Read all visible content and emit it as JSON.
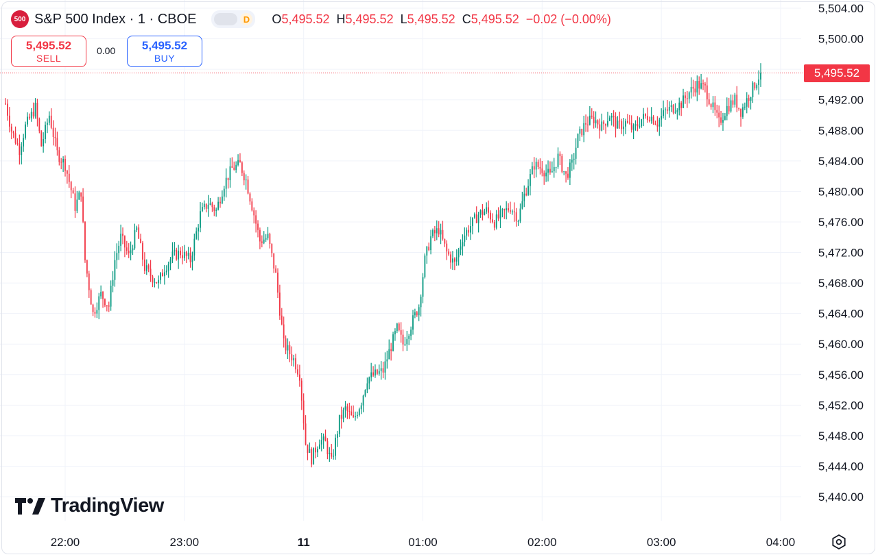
{
  "header": {
    "symbol_badge": "500",
    "title": "S&P 500 Index · 1 · CBOE",
    "market_status": "D",
    "ohlc": [
      {
        "key": "O",
        "value": "5,495.52"
      },
      {
        "key": "H",
        "value": "5,495.52"
      },
      {
        "key": "L",
        "value": "5,495.52"
      },
      {
        "key": "C",
        "value": "5,495.52"
      }
    ],
    "change": "−0.02 (−0.00%)"
  },
  "trade": {
    "sell_price": "5,495.52",
    "sell_label": "SELL",
    "spread": "0.00",
    "buy_price": "5,495.52",
    "buy_label": "BUY"
  },
  "last_price_label": "5,495.52",
  "logo_text": "TradingView",
  "colors": {
    "up": "#089981",
    "down": "#f23645",
    "grid": "#f0f3fa",
    "axis_text": "#131722"
  },
  "chart_data": {
    "type": "candlestick",
    "title": "S&P 500 Index · 1 · CBOE",
    "ylim": [
      5438,
      5504
    ],
    "y_ticks": [
      "5,440.00",
      "5,444.00",
      "5,448.00",
      "5,452.00",
      "5,456.00",
      "5,460.00",
      "5,464.00",
      "5,468.00",
      "5,472.00",
      "5,476.00",
      "5,480.00",
      "5,484.00",
      "5,488.00",
      "5,492.00",
      "5,496.00",
      "5,500.00",
      "5,504.00"
    ],
    "y_tick_values": [
      5440,
      5444,
      5448,
      5452,
      5456,
      5460,
      5464,
      5468,
      5472,
      5476,
      5480,
      5484,
      5488,
      5492,
      5496,
      5500,
      5504
    ],
    "x_ticks": [
      {
        "label": "22:00",
        "minute": 0
      },
      {
        "label": "23:00",
        "minute": 60
      },
      {
        "label": "11",
        "minute": 120,
        "bold": true
      },
      {
        "label": "01:00",
        "minute": 180
      },
      {
        "label": "02:00",
        "minute": 240
      },
      {
        "label": "03:00",
        "minute": 300
      },
      {
        "label": "04:00",
        "minute": 360
      }
    ],
    "interval_minutes": 1,
    "start_minute": -30,
    "last_price": 5495.52,
    "anchors": [
      [
        -30,
        5491.5
      ],
      [
        -27,
        5488.0
      ],
      [
        -23,
        5485.5
      ],
      [
        -20,
        5488.5
      ],
      [
        -15,
        5491.0
      ],
      [
        -12,
        5486.0
      ],
      [
        -8,
        5490.0
      ],
      [
        -4,
        5485.0
      ],
      [
        0,
        5483.5
      ],
      [
        5,
        5478.0
      ],
      [
        8,
        5480.0
      ],
      [
        10,
        5471.0
      ],
      [
        14,
        5464.0
      ],
      [
        18,
        5466.5
      ],
      [
        22,
        5465.0
      ],
      [
        25,
        5471.0
      ],
      [
        28,
        5474.0
      ],
      [
        32,
        5471.5
      ],
      [
        36,
        5475.0
      ],
      [
        40,
        5470.0
      ],
      [
        43,
        5469.0
      ],
      [
        47,
        5468.0
      ],
      [
        50,
        5470.0
      ],
      [
        54,
        5471.5
      ],
      [
        58,
        5472.0
      ],
      [
        63,
        5471.0
      ],
      [
        68,
        5477.0
      ],
      [
        72,
        5478.5
      ],
      [
        76,
        5477.5
      ],
      [
        80,
        5481.0
      ],
      [
        84,
        5483.0
      ],
      [
        88,
        5483.5
      ],
      [
        91,
        5481.5
      ],
      [
        95,
        5477.0
      ],
      [
        98,
        5473.5
      ],
      [
        102,
        5474.0
      ],
      [
        106,
        5469.0
      ],
      [
        110,
        5460.0
      ],
      [
        115,
        5458.0
      ],
      [
        118,
        5456.0
      ],
      [
        121,
        5447.0
      ],
      [
        124,
        5445.0
      ],
      [
        128,
        5447.5
      ],
      [
        131,
        5447.0
      ],
      [
        134,
        5444.5
      ],
      [
        138,
        5450.0
      ],
      [
        141,
        5451.5
      ],
      [
        145,
        5450.0
      ],
      [
        149,
        5452.5
      ],
      [
        152,
        5455.5
      ],
      [
        156,
        5456.0
      ],
      [
        160,
        5456.5
      ],
      [
        163,
        5459.0
      ],
      [
        167,
        5462.0
      ],
      [
        170,
        5460.0
      ],
      [
        174,
        5462.5
      ],
      [
        178,
        5465.0
      ],
      [
        181,
        5471.0
      ],
      [
        184,
        5474.0
      ],
      [
        188,
        5475.0
      ],
      [
        192,
        5472.0
      ],
      [
        196,
        5470.5
      ],
      [
        200,
        5474.0
      ],
      [
        204,
        5475.5
      ],
      [
        208,
        5477.0
      ],
      [
        212,
        5477.5
      ],
      [
        216,
        5476.0
      ],
      [
        220,
        5477.0
      ],
      [
        224,
        5478.0
      ],
      [
        228,
        5476.5
      ],
      [
        231,
        5479.5
      ],
      [
        236,
        5483.5
      ],
      [
        240,
        5483.0
      ],
      [
        244,
        5482.0
      ],
      [
        248,
        5484.5
      ],
      [
        252,
        5482.0
      ],
      [
        255,
        5483.5
      ],
      [
        258,
        5487.0
      ],
      [
        262,
        5489.0
      ],
      [
        266,
        5489.5
      ],
      [
        270,
        5488.5
      ],
      [
        274,
        5490.0
      ],
      [
        278,
        5488.5
      ],
      [
        282,
        5489.0
      ],
      [
        286,
        5488.0
      ],
      [
        290,
        5489.5
      ],
      [
        294,
        5490.0
      ],
      [
        298,
        5489.0
      ],
      [
        302,
        5490.5
      ],
      [
        306,
        5491.0
      ],
      [
        310,
        5491.5
      ],
      [
        314,
        5493.0
      ],
      [
        318,
        5494.0
      ],
      [
        322,
        5493.5
      ],
      [
        325,
        5491.5
      ],
      [
        329,
        5489.0
      ],
      [
        333,
        5491.0
      ],
      [
        337,
        5492.0
      ],
      [
        340,
        5490.5
      ],
      [
        344,
        5492.5
      ],
      [
        348,
        5494.5
      ],
      [
        350,
        5495.52
      ]
    ]
  }
}
